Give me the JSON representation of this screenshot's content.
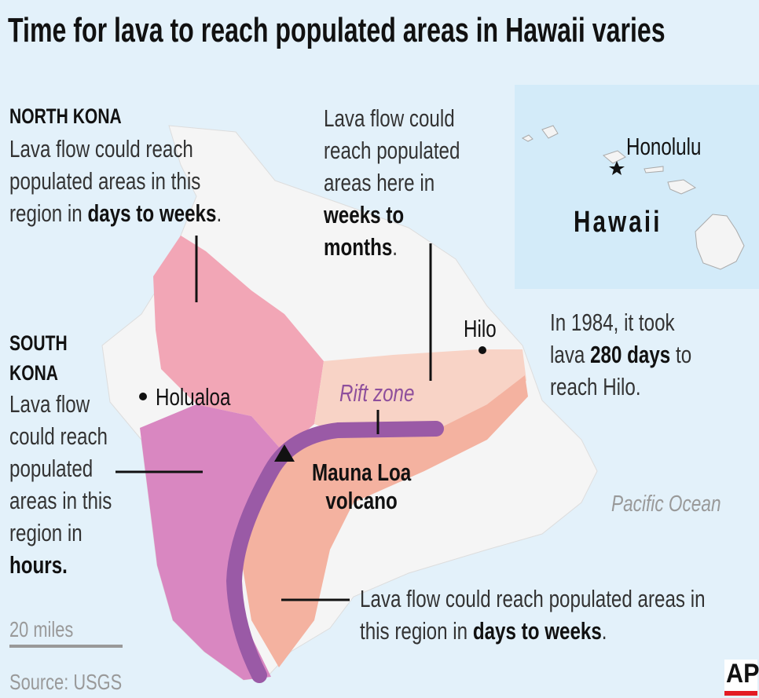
{
  "title": "Time for lava to reach populated areas in Hawaii varies",
  "north_kona": {
    "heading": "NORTH KONA",
    "text": "Lava flow could reach populated areas in this region in ",
    "bold": "days to weeks",
    "end": "."
  },
  "east": {
    "text": "Lava flow could reach populated areas here in ",
    "bold": "weeks to months",
    "end": "."
  },
  "inset": {
    "city": "Honolulu",
    "state": "Hawaii"
  },
  "hilo": {
    "label": "Hilo",
    "text": "In 1984, it took lava ",
    "bold": "280 days",
    "end": " to reach Hilo."
  },
  "south_kona": {
    "heading": "SOUTH KONA",
    "text": "Lava flow could reach populated areas in this region in ",
    "bold": "hours."
  },
  "places": {
    "holualoa": "Holualoa",
    "rift": "Rift zone",
    "volcano": "Mauna Loa volcano",
    "ocean": "Pacific Ocean"
  },
  "southeast": {
    "text": "Lava flow could reach populated areas in this region in ",
    "bold": "days to weeks",
    "end": "."
  },
  "scale": "20 miles",
  "source": "Source: USGS",
  "logo": "AP"
}
